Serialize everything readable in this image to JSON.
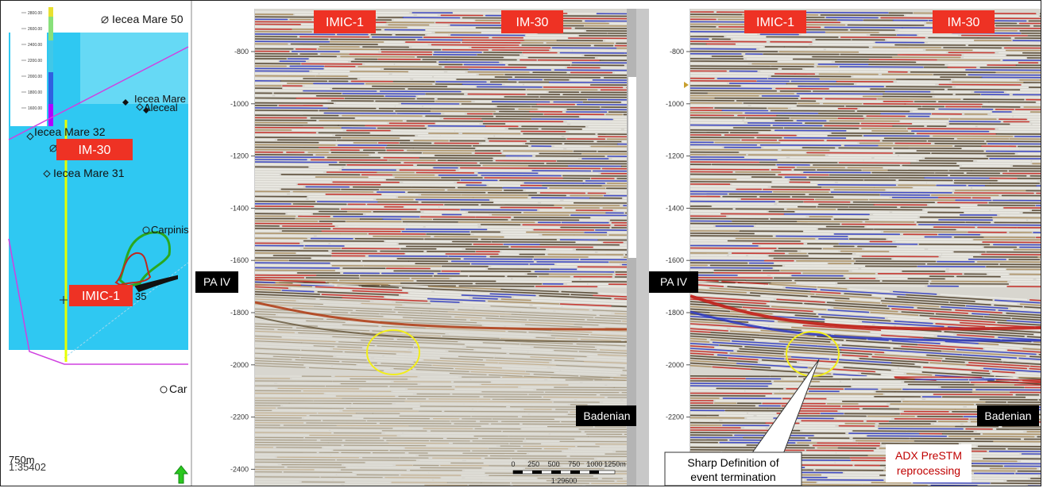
{
  "map": {
    "wells": [
      {
        "label": "Iecea Mare 50"
      },
      {
        "label": "Iecea Mare"
      },
      {
        "label": "Iecea Mare 32"
      },
      {
        "label": "Iecea Mare 31"
      },
      {
        "label": "Carpinis"
      },
      {
        "label": "35"
      },
      {
        "label": "Car"
      }
    ],
    "overlap_label": "Aleceal",
    "well_tags": {
      "im30": "IM-30",
      "imic1": "IMIC-1"
    },
    "legend_values": [
      "2800.00",
      "2600.00",
      "2400.00",
      "2200.00",
      "2000.00",
      "1800.00",
      "1600.00"
    ],
    "scale_text": "750m",
    "scale_ratio": "1:35402",
    "colors": {
      "fill": "#2fc8f2",
      "legend_top": "#88e07a",
      "legend_bottom": "#b000ff",
      "line_yellow": "#e6ff00",
      "line_magenta": "#d040e0"
    }
  },
  "left_section": {
    "well_tags": [
      "IMIC-1",
      "IM-30"
    ],
    "horizon_tag": "PA IV",
    "formation_tag": "Badenian",
    "y_ticks": [
      "-800",
      "-1000",
      "-1200",
      "-1400",
      "-1600",
      "-1800",
      "-2000",
      "-2200",
      "-2400"
    ],
    "scalebar_ticks": [
      "0",
      "250",
      "500",
      "750",
      "1000",
      "1250m"
    ],
    "scalebar_ratio": "1:29600"
  },
  "right_section": {
    "well_tags": [
      "IMIC-1",
      "IM-30"
    ],
    "horizon_tag": "PA IV",
    "formation_tag": "Badenian",
    "y_ticks": [
      "-800",
      "-1000",
      "-1200",
      "-1400",
      "-1600",
      "-1800",
      "-2000",
      "-2200"
    ],
    "callout": [
      "Sharp Definition of",
      "event termination"
    ],
    "reprocessing": [
      "ADX PreSTM",
      "reprocessing"
    ]
  },
  "colors": {
    "tag_red": "#ee3224",
    "tag_black": "#000000",
    "circle": "#f2ee1a",
    "reprocessing_text": "#c00000"
  }
}
